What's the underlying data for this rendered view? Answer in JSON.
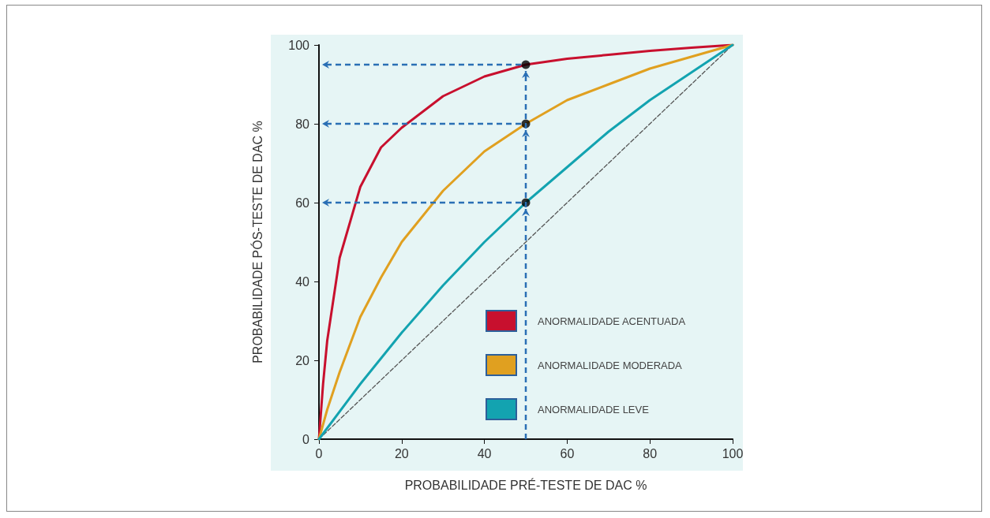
{
  "chart_data": {
    "type": "line",
    "xlabel": "PROBABILIDADE PRÉ-TESTE DE DAC %",
    "ylabel": "PROBABILIDADE PÓS-TESTE DE DAC %",
    "xlim": [
      0,
      100
    ],
    "ylim": [
      0,
      100
    ],
    "xticks": [
      0,
      20,
      40,
      60,
      80,
      100
    ],
    "yticks": [
      0,
      20,
      40,
      60,
      80,
      100
    ],
    "grid": false,
    "legend": "bottom right",
    "marker": "none",
    "series": [
      {
        "name": "ANORMALIDADE ACENTUADA",
        "color": "#c8102e",
        "x": [
          0,
          1,
          2,
          5,
          10,
          15,
          20,
          30,
          40,
          50,
          60,
          70,
          80,
          90,
          100
        ],
        "values": [
          0,
          14,
          25,
          46,
          64,
          74,
          79,
          87,
          92,
          95,
          96.5,
          97.5,
          98.5,
          99.3,
          100
        ]
      },
      {
        "name": "ANORMALIDADE MODERADA",
        "color": "#e0a020",
        "x": [
          0,
          2,
          5,
          10,
          15,
          20,
          30,
          40,
          50,
          60,
          70,
          80,
          90,
          100
        ],
        "values": [
          0,
          7.5,
          17,
          31,
          41,
          50,
          63,
          73,
          80,
          86,
          90,
          94,
          97,
          100
        ]
      },
      {
        "name": "ANORMALIDADE LEVE",
        "color": "#13a3b0",
        "x": [
          0,
          10,
          20,
          30,
          40,
          50,
          60,
          70,
          80,
          90,
          100
        ],
        "values": [
          0,
          14,
          27,
          39,
          50,
          60,
          69,
          78,
          86,
          93,
          100
        ]
      },
      {
        "color": "#555555",
        "line_style": "dashed",
        "x": [
          0,
          100
        ],
        "values": [
          0,
          100
        ]
      },
      {
        "type": "scatter",
        "color": "#000000",
        "marker": "circle",
        "x": [
          50,
          50,
          50
        ],
        "values": [
          95,
          80,
          60
        ]
      }
    ]
  }
}
